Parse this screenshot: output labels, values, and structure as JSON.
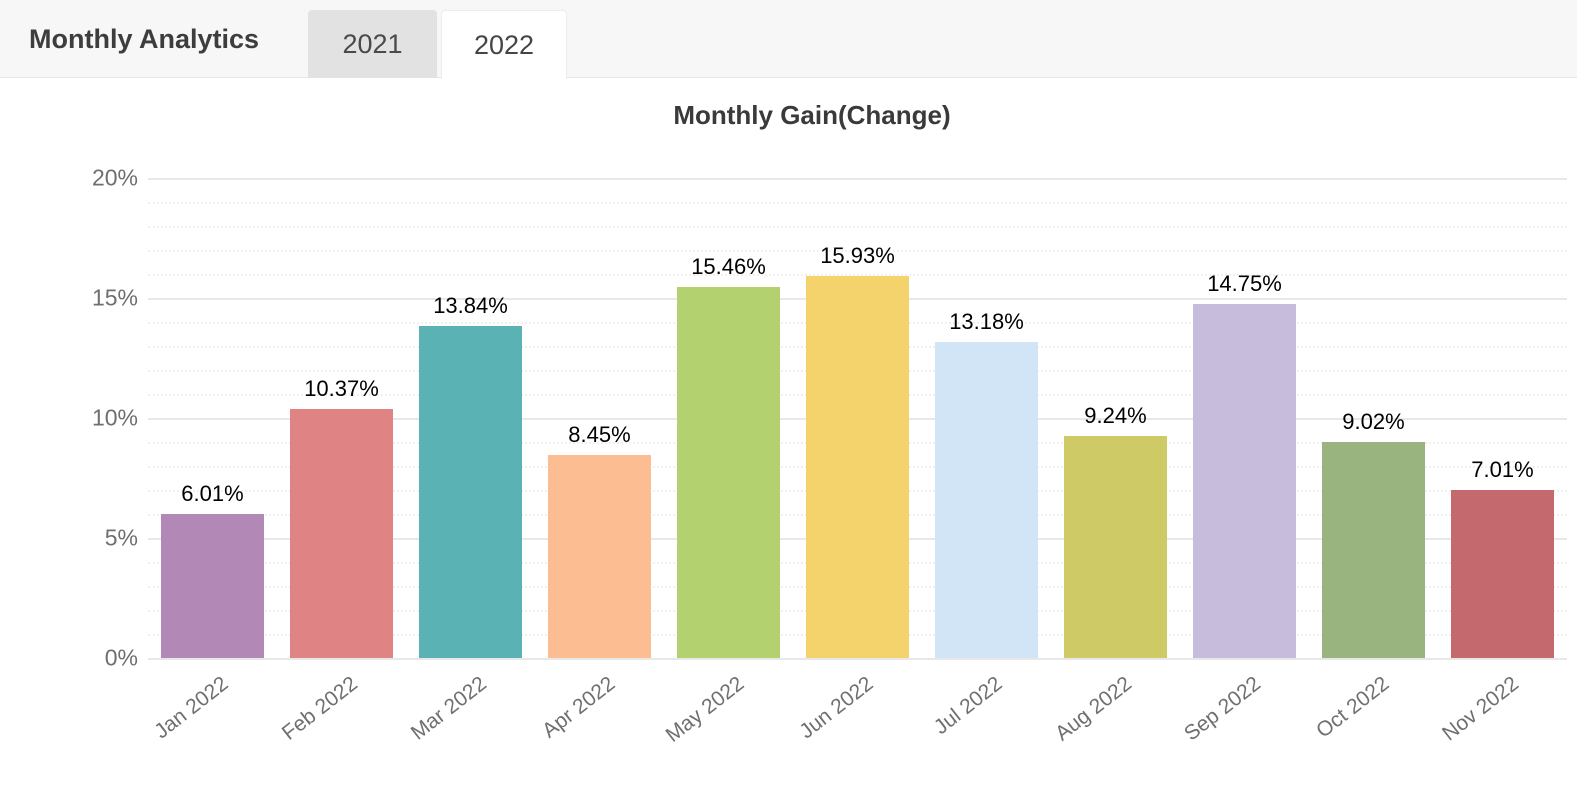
{
  "header": {
    "title": "Monthly Analytics",
    "tabs": [
      {
        "label": "2021",
        "active": false
      },
      {
        "label": "2022",
        "active": true
      }
    ]
  },
  "chart_data": {
    "type": "bar",
    "title": "Monthly Gain(Change)",
    "categories": [
      "Jan 2022",
      "Feb 2022",
      "Mar 2022",
      "Apr 2022",
      "May 2022",
      "Jun 2022",
      "Jul 2022",
      "Aug 2022",
      "Sep 2022",
      "Oct 2022",
      "Nov 2022"
    ],
    "values": [
      6.01,
      10.37,
      13.84,
      8.45,
      15.46,
      15.93,
      13.18,
      9.24,
      14.75,
      9.02,
      7.01
    ],
    "value_labels": [
      "6.01%",
      "10.37%",
      "13.84%",
      "8.45%",
      "15.46%",
      "15.93%",
      "13.18%",
      "9.24%",
      "14.75%",
      "9.02%",
      "7.01%"
    ],
    "bar_colors": [
      "#b288b6",
      "#e08384",
      "#5bb2b5",
      "#fdbd92",
      "#b3d16e",
      "#f4d36d",
      "#d2e5f6",
      "#cecb67",
      "#c8bcdd",
      "#99b47e",
      "#c46a6f"
    ],
    "xlabel": "",
    "ylabel": "",
    "ylim": [
      0,
      20
    ],
    "y_ticks": [
      "0%",
      "5%",
      "10%",
      "15%",
      "20%"
    ],
    "y_major_step": 5,
    "y_minor_step": 1,
    "grid": "major-solid-minor-dotted",
    "legend_position": "none"
  },
  "colors": {
    "header_bg": "#f7f7f7",
    "header_border": "#e7e7e7",
    "tab_inactive_bg": "#e2e2e2",
    "tab_active_bg": "#ffffff",
    "grid_major": "#e8e8e8",
    "grid_minor": "#f0f0f0",
    "axis_text": "#6f6f6f",
    "title_text": "#3a3a3a",
    "value_text": "#000000"
  }
}
